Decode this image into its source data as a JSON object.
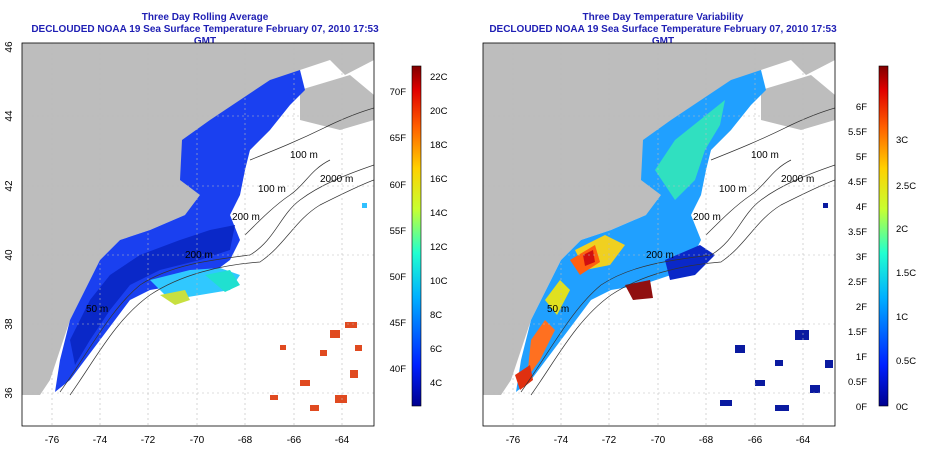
{
  "left_panel": {
    "title_line1": "Three Day Rolling Average",
    "title_line2": "DECLOUDED NOAA 19 Sea Surface Temperature February 07, 2010 17:53 GMT",
    "x_ticks": [
      "-76",
      "-74",
      "-72",
      "-70",
      "-68",
      "-66",
      "-64"
    ],
    "y_ticks": [
      "36",
      "38",
      "40",
      "42",
      "44",
      "46"
    ],
    "contour_labels": [
      "100 m",
      "2000 m",
      "100 m",
      "200 m",
      "200 m",
      "50 m"
    ],
    "colorbar_c": [
      "22C",
      "20C",
      "18C",
      "16C",
      "14C",
      "12C",
      "10C",
      "8C",
      "6C",
      "4C"
    ],
    "colorbar_f": [
      "70F",
      "65F",
      "60F",
      "55F",
      "50F",
      "45F",
      "40F"
    ]
  },
  "right_panel": {
    "title_line1": "Three Day Temperature Variability",
    "title_line2": "DECLOUDED NOAA 19 Sea Surface Temperature February 07, 2010 17:53 GMT",
    "x_ticks": [
      "-76",
      "-74",
      "-72",
      "-70",
      "-68",
      "-66",
      "-64"
    ],
    "y_ticks": [
      "36",
      "38",
      "40",
      "42",
      "44",
      "46"
    ],
    "contour_labels": [
      "100 m",
      "2000 m",
      "100 m",
      "200 m",
      "200 m",
      "50 m"
    ],
    "colorbar_c": [
      "3C",
      "2.5C",
      "2C",
      "1.5C",
      "1C",
      "0.5C",
      "0C"
    ],
    "colorbar_f": [
      "6F",
      "5.5F",
      "5F",
      "4.5F",
      "4F",
      "3.5F",
      "3F",
      "2.5F",
      "2F",
      "1.5F",
      "1F",
      "0.5F",
      "0F"
    ]
  },
  "colors": {
    "title": "#1f1fb4",
    "land": "#bdbdbd",
    "ocean_blue": "#1030e0",
    "ocean_deep": "#0a0a90",
    "warm": "#e05a20"
  }
}
